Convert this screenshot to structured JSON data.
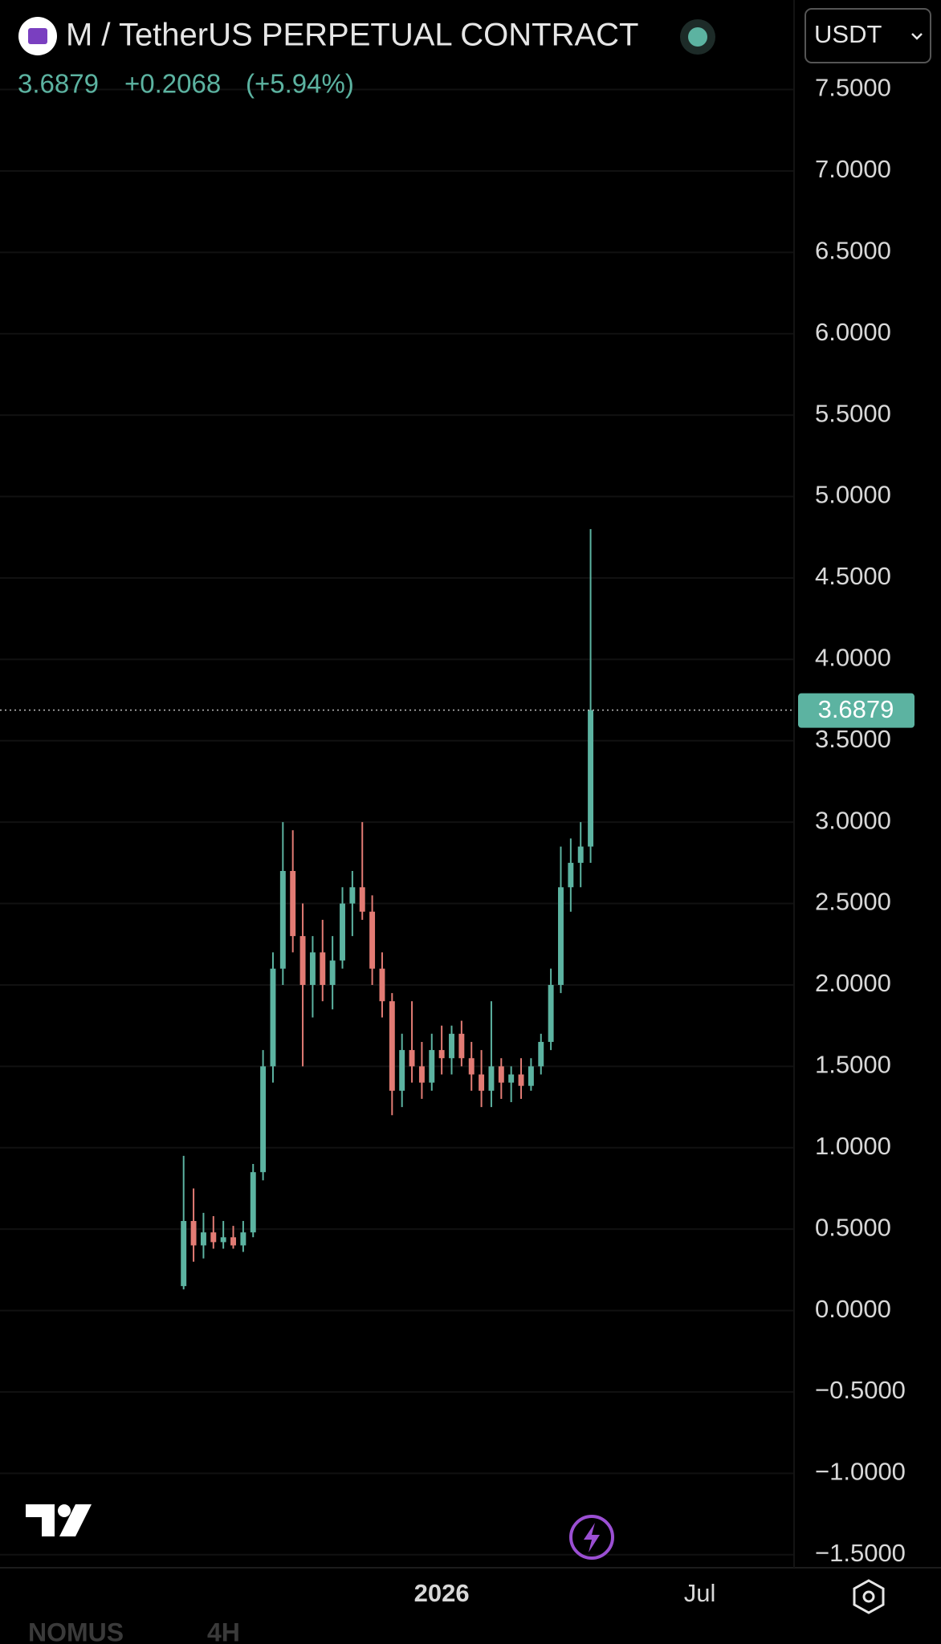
{
  "header": {
    "title": "M / TetherUS PERPETUAL CONTRACT",
    "price": "3.6879",
    "change": "+0.2068",
    "change_pct": "(+5.94%)",
    "currency": "USDT"
  },
  "bottom_tabs": [
    "NOMUS",
    "4H"
  ],
  "chart_data": {
    "type": "candlestick",
    "up_color": "#5cb3a1",
    "down_color": "#e27b74",
    "grid": true,
    "last_price": 3.6879,
    "last_price_color": "#5cb3a1",
    "ylim": [
      -1.58,
      8.05
    ],
    "yticks": [
      {
        "value": -1.5,
        "label": "−1.5000"
      },
      {
        "value": -1,
        "label": "−1.0000"
      },
      {
        "value": -0.5,
        "label": "−0.5000"
      },
      {
        "value": 0,
        "label": "0.0000"
      },
      {
        "value": 0.5,
        "label": "0.5000"
      },
      {
        "value": 1,
        "label": "1.0000"
      },
      {
        "value": 1.5,
        "label": "1.5000"
      },
      {
        "value": 2,
        "label": "2.0000"
      },
      {
        "value": 2.5,
        "label": "2.5000"
      },
      {
        "value": 3,
        "label": "3.0000"
      },
      {
        "value": 3.5,
        "label": "3.5000"
      },
      {
        "value": 4,
        "label": "4.0000"
      },
      {
        "value": 4.5,
        "label": "4.5000"
      },
      {
        "value": 5,
        "label": "5.0000"
      },
      {
        "value": 5.5,
        "label": "5.5000"
      },
      {
        "value": 6,
        "label": "6.0000"
      },
      {
        "value": 6.5,
        "label": "6.5000"
      },
      {
        "value": 7,
        "label": "7.0000"
      },
      {
        "value": 7.5,
        "label": "7.5000"
      }
    ],
    "categories": [
      null,
      null,
      null,
      null,
      null,
      null,
      null,
      null,
      null,
      null,
      null,
      null,
      null,
      null,
      null,
      null,
      null,
      null,
      null,
      null,
      null,
      null,
      null,
      null,
      null,
      null,
      null,
      null,
      null,
      null,
      null,
      null,
      null,
      null,
      null,
      null,
      null,
      null,
      null,
      null,
      null,
      null,
      null,
      null,
      "2026",
      null,
      null,
      null,
      null,
      null,
      null,
      null,
      null,
      null,
      null,
      null,
      null,
      null,
      null,
      null,
      null,
      null,
      null,
      null,
      null,
      null,
      null,
      null,
      null,
      null,
      "Jul",
      null,
      null,
      null,
      null,
      null,
      null,
      null,
      null,
      null
    ],
    "open": [
      null,
      null,
      null,
      null,
      null,
      null,
      null,
      null,
      null,
      null,
      null,
      null,
      null,
      null,
      null,
      null,
      null,
      null,
      0.15,
      0.55,
      0.4,
      0.48,
      0.42,
      0.45,
      0.4,
      0.48,
      0.85,
      1.5,
      2.1,
      2.7,
      2.3,
      2.0,
      2.2,
      2.0,
      2.15,
      2.5,
      2.6,
      2.45,
      2.1,
      1.9,
      1.35,
      1.6,
      1.5,
      1.4,
      1.6,
      1.55,
      1.7,
      1.55,
      1.45,
      1.35,
      1.5,
      1.4,
      1.45,
      1.38,
      1.5,
      1.65,
      2.0,
      2.6,
      2.75,
      2.85,
      null,
      null,
      null,
      null,
      null,
      null,
      null,
      null,
      null,
      null,
      null,
      null,
      null,
      null,
      null,
      null,
      null,
      null,
      null,
      null
    ],
    "high": [
      null,
      null,
      null,
      null,
      null,
      null,
      null,
      null,
      null,
      null,
      null,
      null,
      null,
      null,
      null,
      null,
      null,
      null,
      0.95,
      0.75,
      0.6,
      0.58,
      0.55,
      0.52,
      0.55,
      0.9,
      1.6,
      2.2,
      3.0,
      2.95,
      2.5,
      2.3,
      2.4,
      2.3,
      2.6,
      2.7,
      3.0,
      2.55,
      2.2,
      1.95,
      1.7,
      1.9,
      1.65,
      1.7,
      1.75,
      1.75,
      1.78,
      1.65,
      1.6,
      1.9,
      1.55,
      1.5,
      1.55,
      1.55,
      1.7,
      2.1,
      2.85,
      2.9,
      3.0,
      4.8,
      null,
      null,
      null,
      null,
      null,
      null,
      null,
      null,
      null,
      null,
      null,
      null,
      null,
      null,
      null,
      null,
      null,
      null,
      null,
      null
    ],
    "low": [
      null,
      null,
      null,
      null,
      null,
      null,
      null,
      null,
      null,
      null,
      null,
      null,
      null,
      null,
      null,
      null,
      null,
      null,
      0.13,
      0.3,
      0.32,
      0.38,
      0.38,
      0.38,
      0.36,
      0.45,
      0.8,
      1.4,
      2.0,
      2.2,
      1.5,
      1.8,
      1.9,
      1.85,
      2.1,
      2.3,
      2.4,
      2.0,
      1.8,
      1.2,
      1.25,
      1.4,
      1.3,
      1.35,
      1.45,
      1.45,
      1.5,
      1.35,
      1.25,
      1.25,
      1.3,
      1.28,
      1.3,
      1.35,
      1.45,
      1.6,
      1.95,
      2.45,
      2.6,
      2.75,
      null,
      null,
      null,
      null,
      null,
      null,
      null,
      null,
      null,
      null,
      null,
      null,
      null,
      null,
      null,
      null,
      null,
      null,
      null,
      null
    ],
    "close": [
      null,
      null,
      null,
      null,
      null,
      null,
      null,
      null,
      null,
      null,
      null,
      null,
      null,
      null,
      null,
      null,
      null,
      null,
      0.55,
      0.4,
      0.48,
      0.42,
      0.45,
      0.4,
      0.48,
      0.85,
      1.5,
      2.1,
      2.7,
      2.3,
      2.0,
      2.2,
      2.0,
      2.15,
      2.5,
      2.6,
      2.45,
      2.1,
      1.9,
      1.35,
      1.6,
      1.5,
      1.4,
      1.6,
      1.55,
      1.7,
      1.55,
      1.45,
      1.35,
      1.5,
      1.4,
      1.45,
      1.38,
      1.5,
      1.65,
      2.0,
      2.6,
      2.75,
      2.85,
      3.6879,
      null,
      null,
      null,
      null,
      null,
      null,
      null,
      null,
      null,
      null,
      null,
      null,
      null,
      null,
      null,
      null,
      null,
      null,
      null,
      null
    ]
  }
}
